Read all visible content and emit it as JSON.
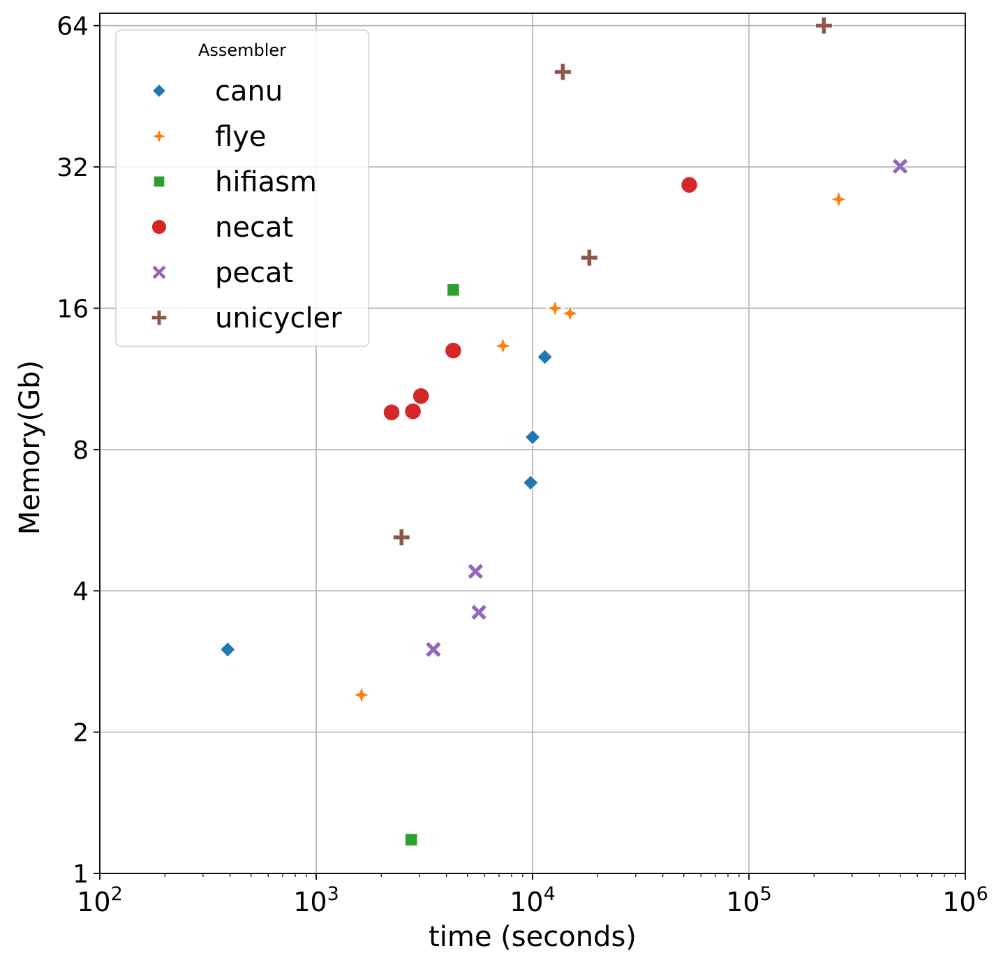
{
  "chart_data": {
    "type": "scatter",
    "xlabel": "time (seconds)",
    "ylabel": "Memory(Gb)",
    "x_scale": "log10",
    "y_scale": "log2",
    "xlim": [
      100,
      1000000
    ],
    "ylim": [
      1,
      68
    ],
    "grid": true,
    "x_ticks": [
      {
        "value": 100,
        "base": "10",
        "exp": "2"
      },
      {
        "value": 1000,
        "base": "10",
        "exp": "3"
      },
      {
        "value": 10000,
        "base": "10",
        "exp": "4"
      },
      {
        "value": 100000,
        "base": "10",
        "exp": "5"
      },
      {
        "value": 1000000,
        "base": "10",
        "exp": "6"
      }
    ],
    "y_ticks": [
      {
        "value": 1,
        "label": "1"
      },
      {
        "value": 2,
        "label": "2"
      },
      {
        "value": 4,
        "label": "4"
      },
      {
        "value": 8,
        "label": "8"
      },
      {
        "value": 16,
        "label": "16"
      },
      {
        "value": 32,
        "label": "32"
      },
      {
        "value": 64,
        "label": "64"
      }
    ],
    "legend": {
      "title": "Assembler",
      "position": "top-left"
    },
    "series": [
      {
        "name": "canu",
        "marker": "diamond",
        "color": "#1f77b4",
        "points": [
          [
            390,
            3.0
          ],
          [
            9800,
            6.8
          ],
          [
            10000,
            8.5
          ],
          [
            11400,
            12.6
          ]
        ]
      },
      {
        "name": "flye",
        "marker": "star4",
        "color": "#ff7f0e",
        "points": [
          [
            1620,
            2.4
          ],
          [
            7300,
            13.3
          ],
          [
            12700,
            16.0
          ],
          [
            14900,
            15.6
          ],
          [
            260000,
            27.3
          ]
        ]
      },
      {
        "name": "hifiasm",
        "marker": "square",
        "color": "#2ca02c",
        "points": [
          [
            2750,
            1.18
          ],
          [
            4300,
            17.5
          ]
        ]
      },
      {
        "name": "necat",
        "marker": "circle",
        "color": "#d62728",
        "points": [
          [
            2230,
            9.6
          ],
          [
            2800,
            9.65
          ],
          [
            3050,
            10.4
          ],
          [
            4300,
            13.0
          ],
          [
            53000,
            29.3
          ]
        ]
      },
      {
        "name": "pecat",
        "marker": "x",
        "color": "#9467bd",
        "points": [
          [
            3480,
            3.0
          ],
          [
            5450,
            4.4
          ],
          [
            5650,
            3.6
          ],
          [
            500000,
            32.1
          ]
        ]
      },
      {
        "name": "unicycler",
        "marker": "plus",
        "color": "#8c564b",
        "points": [
          [
            2480,
            5.2
          ],
          [
            13800,
            51.0
          ],
          [
            18300,
            20.5
          ],
          [
            222000,
            64.0
          ]
        ]
      }
    ]
  }
}
